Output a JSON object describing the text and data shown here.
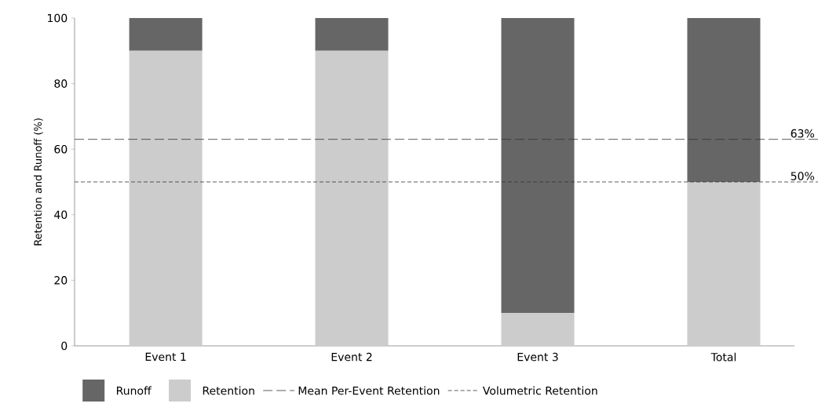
{
  "chart_data": {
    "type": "bar",
    "stacked": true,
    "ylabel": "Retention and Runoff (%)",
    "categories": [
      "Event 1",
      "Event 2",
      "Event 3",
      "Total"
    ],
    "series": [
      {
        "name": "Retention",
        "color": "#cccccc",
        "values": [
          90,
          90,
          10,
          50
        ]
      },
      {
        "name": "Runoff",
        "color": "#666666",
        "values": [
          10,
          10,
          90,
          50
        ]
      }
    ],
    "ylim": [
      0,
      100
    ],
    "yticks": [
      0,
      20,
      40,
      60,
      80,
      100
    ],
    "ref_lines": [
      {
        "axis": "y",
        "value": 63,
        "label": "63%",
        "line_style": "dashed",
        "color": "#333333"
      },
      {
        "axis": "y",
        "value": 50,
        "label": "50%",
        "line_style": "dotted",
        "color": "#333333"
      }
    ],
    "annotations": [
      "Mean Per-Event Retention",
      "Volumetric Retention"
    ],
    "legend": "bottom"
  }
}
